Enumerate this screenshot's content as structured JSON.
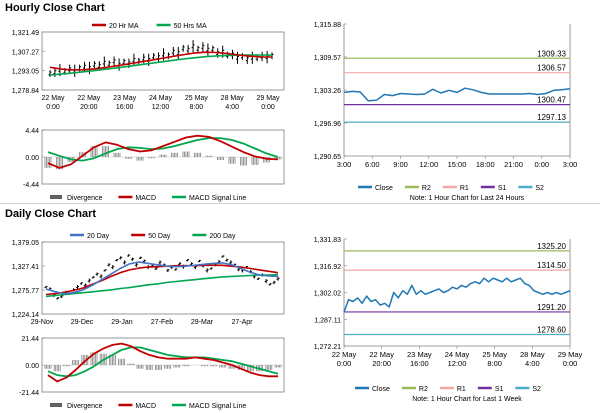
{
  "sections": {
    "hourly_title": "Hourly Close Chart",
    "daily_title": "Daily Close Chart"
  },
  "colors": {
    "price": "#000000",
    "ma_red": "#c00000",
    "ma_green": "#00a650",
    "ma_blue": "#4472c4",
    "macd_red": "#c00000",
    "signal_green": "#00a650",
    "divergence": "#808080",
    "close_blue": "#1f77b4",
    "r2": "#9bbb59",
    "r1": "#f4a6a6",
    "s1": "#7030a0",
    "s2": "#4bacc6"
  },
  "chart_data": [
    {
      "id": "hourly_price",
      "type": "line",
      "title": "Hourly Close Chart",
      "legend": [
        "20 Hr MA",
        "50 Hrs MA"
      ],
      "yticks": [
        "1,321.49",
        "1,307.27",
        "1,293.05",
        "1,278.84"
      ],
      "ylim": [
        1278.84,
        1321.49
      ],
      "xticks": [
        [
          "22 May",
          "0:00"
        ],
        [
          "22 May",
          "20:00"
        ],
        [
          "23 May",
          "16:00"
        ],
        [
          "24 May",
          "12:00"
        ],
        [
          "25 May",
          "8:00"
        ],
        [
          "28 May",
          "4:00"
        ],
        [
          "29 May",
          "0:00"
        ]
      ],
      "series": [
        {
          "name": "Price",
          "values": [
            1291,
            1292,
            1293.5,
            1292.5,
            1294,
            1293,
            1295,
            1296,
            1295,
            1297.5,
            1296.5,
            1299,
            1298,
            1300,
            1297.5,
            1299.5,
            1298.5,
            1301,
            1300,
            1302,
            1301,
            1303.5,
            1303,
            1305,
            1304,
            1307,
            1306,
            1309.5,
            1308.5,
            1311,
            1309,
            1310.5,
            1308.5,
            1309,
            1306,
            1307,
            1304.5,
            1305,
            1302.5,
            1303.5,
            1301.5,
            1302.5,
            1302.5,
            1303.5,
            1303,
            1304
          ]
        },
        {
          "name": "20 Hr MA",
          "values": [
            1295.5,
            1294.2,
            1293.6,
            1293.7,
            1294.4,
            1295.4,
            1296.6,
            1297.9,
            1299.3,
            1300.6,
            1302,
            1303.4,
            1304.8,
            1306,
            1306.6,
            1306.4,
            1305.6,
            1304.6,
            1303.7,
            1303.2,
            1303.1
          ]
        },
        {
          "name": "50 Hrs MA",
          "values": [
            1289.8,
            1290.5,
            1291.3,
            1292.2,
            1293.1,
            1294.1,
            1295.1,
            1296.2,
            1297.3,
            1298.4,
            1299.5,
            1300.6,
            1301.6,
            1302.5,
            1303.3,
            1303.9,
            1304.3,
            1304.5,
            1304.6,
            1304.6,
            1304.5
          ]
        }
      ]
    },
    {
      "id": "hourly_macd",
      "type": "line",
      "yticks": [
        "4.44",
        "0.00",
        "-4.44"
      ],
      "ylim": [
        -4.44,
        4.44
      ],
      "legend": [
        "Divergence",
        "MACD",
        "MACD Signal Line"
      ],
      "series": [
        {
          "name": "MACD",
          "values": [
            -1.0,
            -1.8,
            -1.2,
            0.2,
            1.6,
            2.4,
            2.0,
            1.3,
            0.9,
            1.1,
            1.8,
            2.5,
            3.2,
            3.5,
            3.3,
            2.6,
            1.7,
            0.8,
            0.1,
            -0.3,
            -0.4
          ]
        },
        {
          "name": "MACD Signal Line",
          "values": [
            0.8,
            0.2,
            -0.4,
            -0.6,
            -0.2,
            0.6,
            1.3,
            1.6,
            1.5,
            1.3,
            1.4,
            1.8,
            2.3,
            2.8,
            3.1,
            3.1,
            2.8,
            2.2,
            1.4,
            0.6,
            0.0
          ]
        },
        {
          "name": "Divergence",
          "values": [
            -1.8,
            -2.0,
            -0.8,
            0.8,
            1.8,
            1.8,
            0.7,
            -0.3,
            -0.6,
            -0.2,
            0.4,
            0.7,
            0.9,
            0.7,
            0.2,
            -0.5,
            -1.1,
            -1.4,
            -1.3,
            -0.9,
            -0.4
          ]
        }
      ]
    },
    {
      "id": "hourly_close",
      "type": "line",
      "yticks": [
        "1,315.88",
        "1,309.57",
        "1,303.26",
        "1,296.96",
        "1,290.65"
      ],
      "ylim": [
        1290.65,
        1315.88
      ],
      "xticks": [
        "3:00",
        "6:00",
        "9:00",
        "12:00",
        "15:00",
        "18:00",
        "21:00",
        "0:00",
        "3:00"
      ],
      "levels": [
        {
          "name": "R2",
          "value": 1309.33,
          "label": "1309.33"
        },
        {
          "name": "R1",
          "value": 1306.57,
          "label": "1306.57"
        },
        {
          "name": "S1",
          "value": 1300.47,
          "label": "1300.47"
        },
        {
          "name": "S2",
          "value": 1297.13,
          "label": "1297.13"
        }
      ],
      "series": [
        {
          "name": "Close",
          "values": [
            1302.8,
            1303.0,
            1302.9,
            1301.2,
            1301.3,
            1302.4,
            1302.2,
            1302.6,
            1302.5,
            1302.4,
            1302.5,
            1303.4,
            1302.7,
            1303.2,
            1302.8,
            1303.6,
            1303.3,
            1302.8,
            1302.5,
            1302.5,
            1302.5,
            1302.5,
            1302.5,
            1302.6,
            1302.4,
            1302.6,
            1303.2,
            1303.3,
            1303.5
          ]
        }
      ],
      "legend": [
        "Close",
        "R2",
        "R1",
        "S1",
        "S2"
      ],
      "note": "Note: 1 Hour Chart for Last 24 Hours"
    },
    {
      "id": "daily_price",
      "type": "line",
      "title": "Daily Close Chart",
      "legend": [
        "20 Day",
        "50 Day",
        "200 Day"
      ],
      "yticks": [
        "1,379.05",
        "1,327.41",
        "1,275.77",
        "1,224.14"
      ],
      "ylim": [
        1224.14,
        1379.05
      ],
      "xticks": [
        "29-Nov",
        "29-Dec",
        "29-Jan",
        "27-Feb",
        "29-Mar",
        "27-Apr"
      ],
      "series": [
        {
          "name": "Price",
          "values": [
            1282,
            1278,
            1265,
            1258,
            1262,
            1270,
            1268,
            1276,
            1282,
            1290,
            1286,
            1296,
            1303,
            1310,
            1305,
            1318,
            1330,
            1325,
            1340,
            1345,
            1335,
            1350,
            1342,
            1330,
            1345,
            1338,
            1325,
            1328,
            1322,
            1335,
            1330,
            1318,
            1325,
            1320,
            1332,
            1326,
            1340,
            1332,
            1325,
            1338,
            1328,
            1318,
            1322,
            1330,
            1336,
            1348,
            1340,
            1335,
            1330,
            1320,
            1318,
            1325,
            1315,
            1305,
            1300,
            1308,
            1295,
            1288,
            1292,
            1300
          ]
        },
        {
          "name": "20 Day",
          "values": [
            1278,
            1272,
            1268,
            1270,
            1276,
            1286,
            1298,
            1310,
            1322,
            1332,
            1336,
            1333,
            1330,
            1327,
            1326,
            1327,
            1329,
            1331,
            1333,
            1334,
            1330,
            1322,
            1314,
            1308,
            1306,
            1305
          ]
        },
        {
          "name": "50 Day",
          "values": [
            1266,
            1268,
            1271,
            1275,
            1280,
            1288,
            1296,
            1305,
            1313,
            1319,
            1323,
            1325,
            1326,
            1327,
            1328,
            1328,
            1328,
            1329,
            1329,
            1329,
            1327,
            1325,
            1322,
            1319,
            1316,
            1313
          ]
        },
        {
          "name": "200 Day",
          "values": [
            1262,
            1264,
            1266,
            1268,
            1270,
            1272,
            1274,
            1276,
            1279,
            1281,
            1284,
            1287,
            1289,
            1292,
            1294,
            1296,
            1298,
            1300,
            1302,
            1304,
            1305,
            1306,
            1307,
            1308,
            1308,
            1309
          ]
        }
      ]
    },
    {
      "id": "daily_macd",
      "type": "line",
      "yticks": [
        "21.44",
        "0.00",
        "-21.44"
      ],
      "ylim": [
        -21.44,
        21.44
      ],
      "legend": [
        "Divergence",
        "MACD",
        "MACD Signal Line"
      ],
      "series": [
        {
          "name": "MACD",
          "values": [
            -8,
            -13,
            -10,
            -4,
            3,
            9,
            13,
            16,
            17,
            15,
            11,
            8,
            6,
            5,
            5,
            5,
            6,
            5,
            4,
            2,
            0,
            -3,
            -6,
            -8,
            -9,
            -9
          ]
        },
        {
          "name": "MACD Signal Line",
          "values": [
            -5,
            -8,
            -9,
            -8,
            -5,
            -1,
            4,
            8,
            12,
            14,
            14,
            12,
            10,
            8,
            7,
            6,
            6,
            6,
            5,
            4,
            3,
            1,
            -1,
            -3,
            -5,
            -7
          ]
        },
        {
          "name": "Divergence",
          "values": [
            -3,
            -5,
            -1,
            4,
            8,
            10,
            9,
            8,
            5,
            1,
            -3,
            -4,
            -4,
            -3,
            -2,
            -1,
            0,
            -1,
            -1,
            -2,
            -3,
            -4,
            -5,
            -5,
            -4,
            -2
          ]
        }
      ]
    },
    {
      "id": "daily_close",
      "type": "line",
      "yticks": [
        "1,331.83",
        "1,316.92",
        "1,302.02",
        "1,287.11",
        "1,272.21"
      ],
      "ylim": [
        1272.21,
        1331.83
      ],
      "xticks": [
        [
          "22 May",
          "0:00"
        ],
        [
          "22 May",
          "20:00"
        ],
        [
          "23 May",
          "16:00"
        ],
        [
          "24 May",
          "12:00"
        ],
        [
          "25 May",
          "8:00"
        ],
        [
          "28 May",
          "4:00"
        ],
        [
          "29 May",
          "0:00"
        ]
      ],
      "levels": [
        {
          "name": "R2",
          "value": 1325.2,
          "label": "1325.20"
        },
        {
          "name": "R1",
          "value": 1314.5,
          "label": "1314.50"
        },
        {
          "name": "S1",
          "value": 1291.2,
          "label": "1291.20"
        },
        {
          "name": "S2",
          "value": 1278.6,
          "label": "1278.60"
        }
      ],
      "series": [
        {
          "name": "Close",
          "values": [
            1291,
            1298,
            1297,
            1299,
            1296,
            1300,
            1297,
            1298,
            1295,
            1296,
            1294,
            1302,
            1299,
            1303,
            1301,
            1306,
            1301,
            1303,
            1301,
            1302,
            1303,
            1304,
            1302,
            1303,
            1305,
            1304,
            1306,
            1305,
            1307,
            1308,
            1307,
            1310,
            1308,
            1310,
            1309,
            1308,
            1310,
            1308,
            1309,
            1310,
            1307,
            1306,
            1303,
            1302,
            1301,
            1302,
            1301,
            1302,
            1301,
            1302,
            1303
          ]
        }
      ],
      "legend": [
        "Close",
        "R2",
        "R1",
        "S1",
        "S2"
      ],
      "note": "Note: 1 Hour Chart for Last 1 Week"
    }
  ]
}
